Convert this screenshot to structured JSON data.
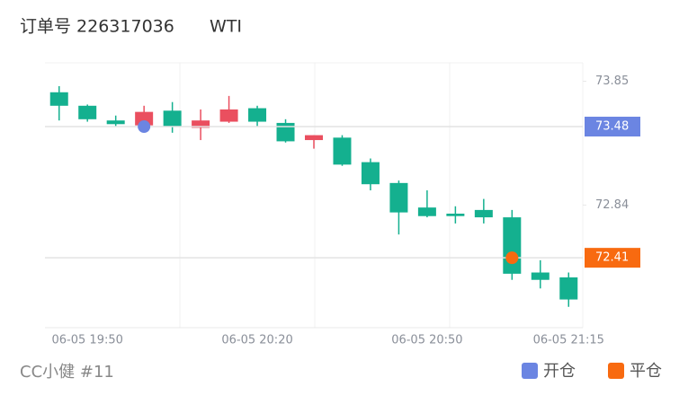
{
  "chart_data": {
    "type": "candlestick",
    "title": "订单号 226317036",
    "subtitle": "WTI",
    "footer": "CC小健 #11",
    "categories": [
      null,
      "06-05 19:50",
      null,
      null,
      null,
      null,
      null,
      "06-05 20:20",
      null,
      null,
      null,
      null,
      null,
      "06-05 20:50",
      null,
      null,
      null,
      null,
      "06-05 21:15"
    ],
    "open": [
      73.76,
      73.65,
      73.53,
      73.49,
      73.61,
      73.47,
      73.52,
      73.63,
      73.51,
      73.37,
      73.39,
      73.19,
      73.02,
      72.82,
      72.77,
      72.8,
      72.74,
      72.29,
      72.25
    ],
    "high": [
      73.81,
      73.66,
      73.57,
      73.65,
      73.68,
      73.62,
      73.73,
      73.65,
      73.54,
      73.41,
      73.41,
      73.22,
      73.04,
      72.96,
      72.83,
      72.89,
      72.8,
      72.39,
      72.29
    ],
    "low": [
      73.53,
      73.52,
      73.48,
      73.48,
      73.43,
      73.37,
      73.51,
      73.48,
      73.35,
      73.3,
      73.16,
      72.96,
      72.6,
      72.74,
      72.69,
      72.69,
      72.23,
      72.16,
      72.01
    ],
    "close": [
      73.65,
      73.54,
      73.5,
      73.6,
      73.48,
      73.53,
      73.62,
      73.52,
      73.36,
      73.41,
      73.17,
      73.01,
      72.78,
      72.75,
      72.75,
      72.74,
      72.28,
      72.23,
      72.07
    ],
    "up_color": "#ea4f5f",
    "down_color": "#14b08f",
    "markers": [
      {
        "name": "开仓",
        "color": "#6b85e2",
        "index": 3,
        "value": 73.48
      },
      {
        "name": "平仓",
        "color": "#f86a10",
        "index": 16,
        "value": 72.41
      }
    ],
    "ylim": [
      71.84,
      74.0
    ],
    "yticks": [
      73.85,
      72.84
    ]
  }
}
